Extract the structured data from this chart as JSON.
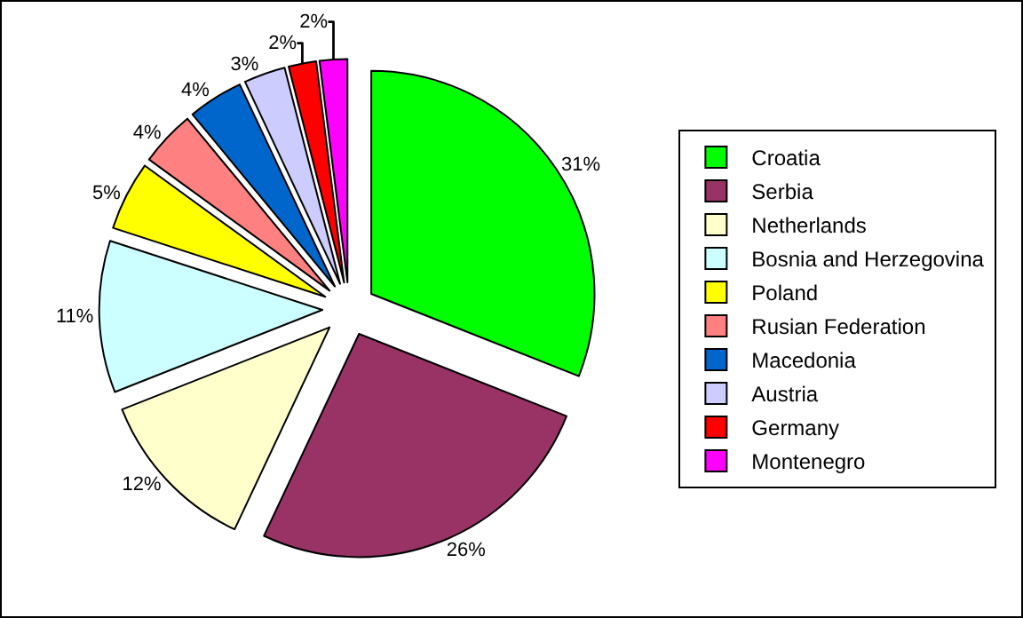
{
  "chart_data": {
    "type": "pie",
    "categories": [
      "Croatia",
      "Serbia",
      "Netherlands",
      "Bosnia and Herzegovina",
      "Poland",
      "Rusian Federation",
      "Macedonia",
      "Austria",
      "Germany",
      "Montenegro"
    ],
    "values": [
      31,
      26,
      12,
      11,
      5,
      4,
      4,
      3,
      2,
      2
    ],
    "value_labels": [
      "31%",
      "26%",
      "12%",
      "11%",
      "5%",
      "4%",
      "4%",
      "3%",
      "2%",
      "2%"
    ],
    "colors": [
      "#00ff00",
      "#993366",
      "#ffffcc",
      "#ccffff",
      "#ffff00",
      "#ff8080",
      "#0066cc",
      "#ccccff",
      "#ff0000",
      "#ff00ff"
    ],
    "legend": "right"
  }
}
